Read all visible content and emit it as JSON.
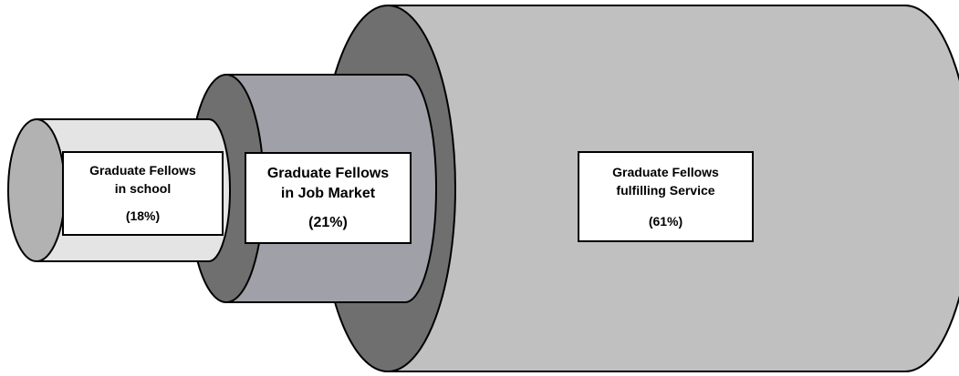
{
  "segments": [
    {
      "id": "school",
      "line1": "Graduate Fellows",
      "line2": "in school",
      "percent_text": "(18%)",
      "percent": 18,
      "body_color": "#e4e4e4",
      "face_color": "#b2b2b2"
    },
    {
      "id": "job",
      "line1": "Graduate Fellows",
      "line2": "in Job Market",
      "percent_text": "(21%)",
      "percent": 21,
      "body_color": "#a0a0a8",
      "face_color": "#6f6f6f"
    },
    {
      "id": "service",
      "line1": "Graduate Fellows",
      "line2": "fulfilling Service",
      "percent_text": "(61%)",
      "percent": 61,
      "body_color": "#c0c0c0",
      "face_color": "#6f6f6f"
    }
  ]
}
